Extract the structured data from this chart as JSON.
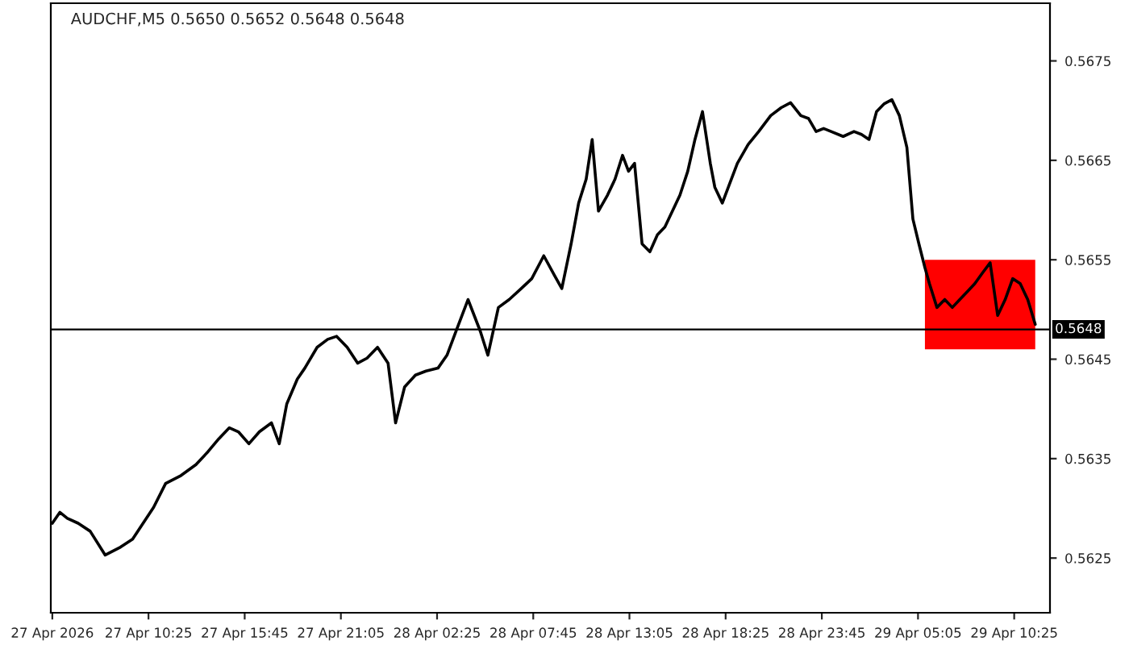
{
  "chart_data": {
    "type": "line",
    "title": "AUDCHF,M5 0.5650 0.5652 0.5648 0.5648",
    "series": [
      {
        "color": "#000000",
        "x": [
          "2026-04-27T05:05",
          "2026-04-27T05:30",
          "2026-04-27T05:55",
          "2026-04-27T06:31",
          "2026-04-27T07:11",
          "2026-04-27T08:01",
          "2026-04-27T08:52",
          "2026-04-27T09:32",
          "2026-04-27T10:07",
          "2026-04-27T10:42",
          "2026-04-27T11:22",
          "2026-04-27T12:13",
          "2026-04-27T13:03",
          "2026-04-27T13:43",
          "2026-04-27T14:19",
          "2026-04-27T14:54",
          "2026-04-27T15:24",
          "2026-04-27T15:59",
          "2026-04-27T16:34",
          "2026-04-27T17:14",
          "2026-04-27T17:40",
          "2026-04-27T18:05",
          "2026-04-27T18:40",
          "2026-04-27T19:05",
          "2026-04-27T19:46",
          "2026-04-27T20:21",
          "2026-04-27T20:51",
          "2026-04-27T21:26",
          "2026-04-27T22:01",
          "2026-04-27T22:32",
          "2026-04-27T23:07",
          "2026-04-27T23:42",
          "2026-04-28T00:07",
          "2026-04-28T00:37",
          "2026-04-28T01:13",
          "2026-04-28T01:48",
          "2026-04-28T02:28",
          "2026-04-28T02:58",
          "2026-04-28T03:28",
          "2026-04-28T04:08",
          "2026-04-28T04:49",
          "2026-04-28T05:14",
          "2026-04-28T05:49",
          "2026-04-28T06:25",
          "2026-04-28T07:05",
          "2026-04-28T07:40",
          "2026-04-28T08:20",
          "2026-04-28T08:56",
          "2026-04-28T09:20",
          "2026-04-28T09:51",
          "2026-04-28T10:16",
          "2026-04-28T10:41",
          "2026-04-28T11:01",
          "2026-04-28T11:22",
          "2026-04-28T11:52",
          "2026-04-28T12:17",
          "2026-04-28T12:42",
          "2026-04-28T13:02",
          "2026-04-28T13:22",
          "2026-04-28T13:47",
          "2026-04-28T14:13",
          "2026-04-28T14:38",
          "2026-04-28T15:03",
          "2026-04-28T15:28",
          "2026-04-28T15:53",
          "2026-04-28T16:19",
          "2026-04-28T16:43",
          "2026-04-28T17:08",
          "2026-04-28T17:34",
          "2026-04-28T17:49",
          "2026-04-28T18:14",
          "2026-04-28T18:34",
          "2026-04-28T19:04",
          "2026-04-28T19:40",
          "2026-04-28T20:15",
          "2026-04-28T20:55",
          "2026-04-28T21:30",
          "2026-04-28T22:01",
          "2026-04-28T22:35",
          "2026-04-28T23:01",
          "2026-04-28T23:26",
          "2026-04-28T23:51",
          "2026-04-29T00:16",
          "2026-04-29T00:56",
          "2026-04-29T01:32",
          "2026-04-29T01:57",
          "2026-04-29T02:22",
          "2026-04-29T02:47",
          "2026-04-29T03:13",
          "2026-04-29T03:38",
          "2026-04-29T04:03",
          "2026-04-29T04:28",
          "2026-04-29T04:48",
          "2026-04-29T05:08",
          "2026-04-29T05:28",
          "2026-04-29T05:43",
          "2026-04-29T06:08",
          "2026-04-29T06:34",
          "2026-04-29T06:59",
          "2026-04-29T07:24",
          "2026-04-29T07:49",
          "2026-04-29T08:14",
          "2026-04-29T08:40",
          "2026-04-29T09:05",
          "2026-04-29T09:30",
          "2026-04-29T09:55",
          "2026-04-29T10:20",
          "2026-04-29T10:45",
          "2026-04-29T11:10",
          "2026-04-29T11:35"
        ],
        "values": [
          0.56285,
          0.56296,
          0.5629,
          0.56285,
          0.56277,
          0.56253,
          0.56261,
          0.56269,
          0.56285,
          0.56301,
          0.56325,
          0.56333,
          0.56344,
          0.56357,
          0.5637,
          0.56381,
          0.56377,
          0.56365,
          0.56377,
          0.56386,
          0.56365,
          0.56405,
          0.5643,
          0.56441,
          0.56462,
          0.5647,
          0.56473,
          0.56462,
          0.56446,
          0.56451,
          0.56462,
          0.56446,
          0.56386,
          0.56422,
          0.56434,
          0.56438,
          0.56441,
          0.56454,
          0.56478,
          0.5651,
          0.56478,
          0.56454,
          0.56502,
          0.5651,
          0.56521,
          0.56531,
          0.56554,
          0.56534,
          0.56521,
          0.56566,
          0.56607,
          0.56631,
          0.56671,
          0.56599,
          0.56615,
          0.56631,
          0.56655,
          0.56639,
          0.56647,
          0.56566,
          0.56558,
          0.56575,
          0.56583,
          0.56599,
          0.56615,
          0.56639,
          0.56671,
          0.56699,
          0.56647,
          0.56623,
          0.56607,
          0.56623,
          0.56647,
          0.56666,
          0.56679,
          0.56695,
          0.56703,
          0.56708,
          0.56695,
          0.56692,
          0.56679,
          0.56682,
          0.56679,
          0.56674,
          0.56679,
          0.56676,
          0.56671,
          0.56699,
          0.56707,
          0.56711,
          0.56695,
          0.56663,
          0.56591,
          0.56566,
          0.56542,
          0.56526,
          0.56502,
          0.5651,
          0.56502,
          0.5651,
          0.56518,
          0.56526,
          0.56537,
          0.56547,
          0.56494,
          0.5651,
          0.56531,
          0.56526,
          0.5651,
          0.56485
        ]
      }
    ],
    "xlim": [
      "2026-04-27T05:00",
      "2026-04-29T12:24"
    ],
    "ylim": [
      0.56195,
      0.56808
    ],
    "xticks": [
      {
        "value": "2026-04-27T05:05",
        "label": "27 Apr 2026"
      },
      {
        "value": "2026-04-27T10:25",
        "label": "27 Apr 10:25"
      },
      {
        "value": "2026-04-27T15:45",
        "label": "27 Apr 15:45"
      },
      {
        "value": "2026-04-27T21:05",
        "label": "27 Apr 21:05"
      },
      {
        "value": "2026-04-28T02:25",
        "label": "28 Apr 02:25"
      },
      {
        "value": "2026-04-28T07:45",
        "label": "28 Apr 07:45"
      },
      {
        "value": "2026-04-28T13:05",
        "label": "28 Apr 13:05"
      },
      {
        "value": "2026-04-28T18:25",
        "label": "28 Apr 18:25"
      },
      {
        "value": "2026-04-28T23:45",
        "label": "28 Apr 23:45"
      },
      {
        "value": "2026-04-29T05:05",
        "label": "29 Apr 05:05"
      },
      {
        "value": "2026-04-29T10:25",
        "label": "29 Apr 10:25"
      }
    ],
    "yticks": [
      0.5625,
      0.5635,
      0.5645,
      0.5655,
      0.5665,
      0.5675
    ],
    "ref_lines": [
      {
        "axis": "y",
        "value": 0.5648,
        "label": "0.5648",
        "color": "#000000"
      }
    ],
    "bands": [
      {
        "axis": "y",
        "from": 0.5646,
        "to": 0.5655,
        "color": "#ff0000"
      }
    ],
    "grid": false,
    "marker": "none",
    "line_style": "solid"
  }
}
